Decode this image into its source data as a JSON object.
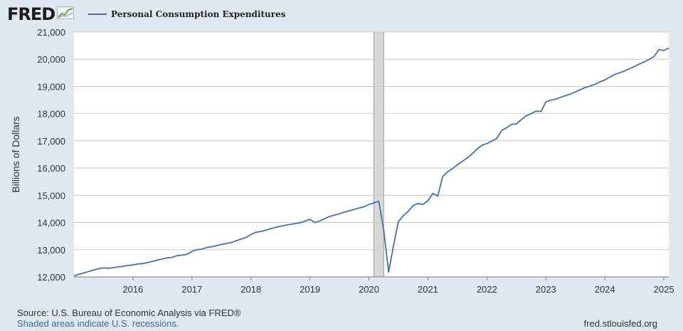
{
  "header": {
    "logo_text": "FRED",
    "logo_icon": "line-graph-icon",
    "legend_label": "Personal Consumption Expenditures"
  },
  "footer": {
    "source": "Source: U.S. Bureau of Economic Analysis via FRED®",
    "note": "Shaded areas indicate U.S. recessions.",
    "url": "fred.stlouisfed.org"
  },
  "colors": {
    "background": "#e1e9f0",
    "plot_background": "#ffffff",
    "line": "#4572a7",
    "recession": "#d8d8d8",
    "gridline": "#c8c8c8",
    "note_link": "#3a6cb6"
  },
  "chart_data": {
    "type": "line",
    "title": "",
    "xlabel": "",
    "ylabel": "Billions of Dollars",
    "ylim": [
      12000,
      21000
    ],
    "xlim": [
      "2015-01-01",
      "2025-02-01"
    ],
    "yticks": [
      "12,000",
      "13,000",
      "14,000",
      "15,000",
      "16,000",
      "17,000",
      "18,000",
      "19,000",
      "20,000",
      "21,000"
    ],
    "xticks": [
      "2016",
      "2017",
      "2018",
      "2019",
      "2020",
      "2021",
      "2022",
      "2023",
      "2024",
      "2025"
    ],
    "grid": "horizontal",
    "legend_position": "top-left",
    "recessions": [
      {
        "start": "2020-02-01",
        "end": "2020-04-01"
      }
    ],
    "series": [
      {
        "name": "Personal Consumption Expenditures",
        "x": [
          "2015-01",
          "2015-02",
          "2015-03",
          "2015-04",
          "2015-05",
          "2015-06",
          "2015-07",
          "2015-08",
          "2015-09",
          "2015-10",
          "2015-11",
          "2015-12",
          "2016-01",
          "2016-02",
          "2016-03",
          "2016-04",
          "2016-05",
          "2016-06",
          "2016-07",
          "2016-08",
          "2016-09",
          "2016-10",
          "2016-11",
          "2016-12",
          "2017-01",
          "2017-02",
          "2017-03",
          "2017-04",
          "2017-05",
          "2017-06",
          "2017-07",
          "2017-08",
          "2017-09",
          "2017-10",
          "2017-11",
          "2017-12",
          "2018-01",
          "2018-02",
          "2018-03",
          "2018-04",
          "2018-05",
          "2018-06",
          "2018-07",
          "2018-08",
          "2018-09",
          "2018-10",
          "2018-11",
          "2018-12",
          "2019-01",
          "2019-02",
          "2019-03",
          "2019-04",
          "2019-05",
          "2019-06",
          "2019-07",
          "2019-08",
          "2019-09",
          "2019-10",
          "2019-11",
          "2019-12",
          "2020-01",
          "2020-02",
          "2020-03",
          "2020-04",
          "2020-05",
          "2020-06",
          "2020-07",
          "2020-08",
          "2020-09",
          "2020-10",
          "2020-11",
          "2020-12",
          "2021-01",
          "2021-02",
          "2021-03",
          "2021-04",
          "2021-05",
          "2021-06",
          "2021-07",
          "2021-08",
          "2021-09",
          "2021-10",
          "2021-11",
          "2021-12",
          "2022-01",
          "2022-02",
          "2022-03",
          "2022-04",
          "2022-05",
          "2022-06",
          "2022-07",
          "2022-08",
          "2022-09",
          "2022-10",
          "2022-11",
          "2022-12",
          "2023-01",
          "2023-02",
          "2023-03",
          "2023-04",
          "2023-05",
          "2023-06",
          "2023-07",
          "2023-08",
          "2023-09",
          "2023-10",
          "2023-11",
          "2023-12",
          "2024-01",
          "2024-02",
          "2024-03",
          "2024-04",
          "2024-05",
          "2024-06",
          "2024-07",
          "2024-08",
          "2024-09",
          "2024-10",
          "2024-11",
          "2024-12",
          "2025-01",
          "2025-02"
        ],
        "values": [
          12040,
          12100,
          12140,
          12200,
          12250,
          12300,
          12330,
          12320,
          12340,
          12370,
          12390,
          12420,
          12440,
          12480,
          12490,
          12530,
          12570,
          12620,
          12660,
          12700,
          12720,
          12780,
          12800,
          12830,
          12940,
          13000,
          13020,
          13080,
          13110,
          13150,
          13190,
          13230,
          13260,
          13330,
          13390,
          13450,
          13560,
          13640,
          13670,
          13720,
          13770,
          13820,
          13860,
          13900,
          13930,
          13960,
          13990,
          14050,
          14120,
          14000,
          14060,
          14140,
          14220,
          14270,
          14320,
          14380,
          14430,
          14480,
          14530,
          14580,
          14660,
          14720,
          14780,
          13730,
          12180,
          13150,
          14030,
          14250,
          14410,
          14620,
          14700,
          14660,
          14800,
          15070,
          14970,
          15690,
          15860,
          15980,
          16120,
          16250,
          16370,
          16520,
          16700,
          16840,
          16900,
          16990,
          17090,
          17380,
          17480,
          17610,
          17620,
          17780,
          17920,
          18000,
          18090,
          18080,
          18430,
          18500,
          18530,
          18600,
          18660,
          18720,
          18800,
          18880,
          18960,
          19020,
          19080,
          19170,
          19240,
          19340,
          19440,
          19500,
          19570,
          19650,
          19730,
          19820,
          19900,
          19990,
          20100,
          20350,
          20320,
          20410
        ]
      }
    ]
  }
}
